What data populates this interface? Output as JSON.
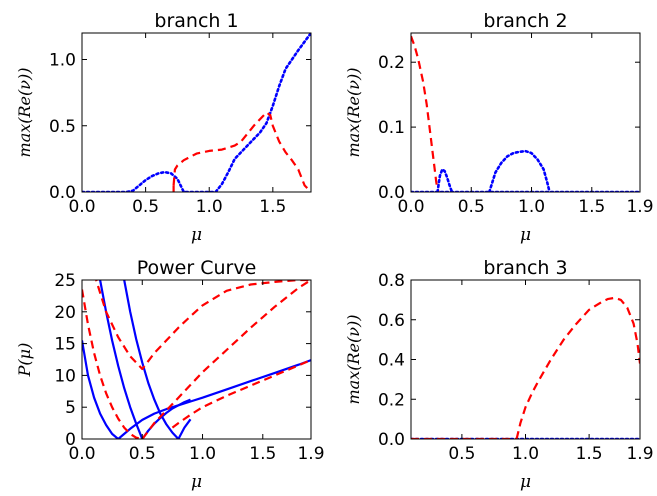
{
  "colors": {
    "solid_series": "#0000ff",
    "dashed_series": "#ff0000"
  },
  "chart_data": [
    {
      "type": "line",
      "title": "branch 1",
      "xlabel": "μ",
      "ylabel": "max(Re(ν))",
      "xlim": [
        0,
        1.8
      ],
      "ylim": [
        0,
        1.2
      ],
      "xticks": [
        0,
        0.5,
        1,
        1.5
      ],
      "xtick_labels": [
        "0.0",
        "0.5",
        "1.0",
        "1.5"
      ],
      "yticks": [
        0,
        0.5,
        1
      ],
      "ytick_labels": [
        "0.0",
        "0.5",
        "1.0"
      ],
      "grid": false,
      "series": [
        {
          "style": "dotted",
          "color": "#0000ff",
          "x": [
            0,
            0.35,
            0.4,
            0.45,
            0.5,
            0.55,
            0.6,
            0.65,
            0.7,
            0.75,
            0.8,
            1.0,
            1.05,
            1.1,
            1.15,
            1.2,
            1.3,
            1.4,
            1.45,
            1.5,
            1.55,
            1.6,
            1.7,
            1.8
          ],
          "y": [
            0,
            0,
            0.01,
            0.05,
            0.09,
            0.12,
            0.14,
            0.15,
            0.14,
            0.1,
            0.0,
            0.0,
            0.0,
            0.06,
            0.15,
            0.25,
            0.35,
            0.45,
            0.52,
            0.65,
            0.8,
            0.93,
            1.07,
            1.2
          ]
        },
        {
          "style": "dashed",
          "color": "#ff0000",
          "x": [
            0.72,
            0.73,
            0.75,
            0.8,
            0.9,
            1.0,
            1.1,
            1.2,
            1.25,
            1.3,
            1.35,
            1.4,
            1.45,
            1.48,
            1.5,
            1.55,
            1.6,
            1.65,
            1.7,
            1.75,
            1.8
          ],
          "y": [
            0.05,
            0.17,
            0.2,
            0.24,
            0.29,
            0.31,
            0.32,
            0.35,
            0.38,
            0.44,
            0.5,
            0.55,
            0.6,
            0.58,
            0.5,
            0.38,
            0.3,
            0.24,
            0.17,
            0.05,
            0.0
          ]
        },
        {
          "style": "dashed",
          "color": "#ff0000",
          "x": [
            0.72,
            0.72
          ],
          "y": [
            0.0,
            0.05
          ]
        }
      ]
    },
    {
      "type": "line",
      "title": "branch 2",
      "xlabel": "μ",
      "ylabel": "max(Re(ν))",
      "xlim": [
        0,
        1.9
      ],
      "ylim": [
        0,
        0.245
      ],
      "xticks": [
        0,
        0.5,
        1,
        1.5,
        1.9
      ],
      "xtick_labels": [
        "0.0",
        "0.5",
        "1.0",
        "1.5",
        "1.9"
      ],
      "yticks": [
        0,
        0.1,
        0.2
      ],
      "ytick_labels": [
        "0.0",
        "0.1",
        "0.2"
      ],
      "grid": false,
      "series": [
        {
          "style": "dashed",
          "color": "#ff0000",
          "x": [
            0,
            0.03,
            0.06,
            0.1,
            0.13,
            0.16,
            0.18,
            0.2,
            0.21,
            0.22,
            0.23
          ],
          "y": [
            0.24,
            0.225,
            0.205,
            0.17,
            0.135,
            0.09,
            0.06,
            0.03,
            0.015,
            0.005,
            0.0
          ]
        },
        {
          "style": "dotted",
          "color": "#0000ff",
          "x": [
            0.22,
            0.24,
            0.26,
            0.28,
            0.3,
            0.32,
            0.34
          ],
          "y": [
            0.0,
            0.025,
            0.035,
            0.032,
            0.022,
            0.01,
            0.0
          ]
        },
        {
          "style": "dotted",
          "color": "#0000ff",
          "x": [
            0.65,
            0.7,
            0.75,
            0.8,
            0.85,
            0.9,
            0.95,
            1.0,
            1.05,
            1.1,
            1.13,
            1.15
          ],
          "y": [
            0.0,
            0.03,
            0.045,
            0.055,
            0.06,
            0.062,
            0.063,
            0.06,
            0.05,
            0.035,
            0.015,
            0.0
          ]
        },
        {
          "style": "dotted",
          "color": "#0000ff",
          "x": [
            0,
            1.9
          ],
          "y": [
            0,
            0
          ]
        }
      ]
    },
    {
      "type": "line",
      "title": "Power Curve",
      "xlabel": "μ",
      "ylabel": "P(μ)",
      "xlim": [
        0,
        1.9
      ],
      "ylim": [
        0,
        25
      ],
      "xticks": [
        0,
        0.5,
        1,
        1.5,
        1.9
      ],
      "xtick_labels": [
        "0.0",
        "0.5",
        "1.0",
        "1.5",
        "1.9"
      ],
      "yticks": [
        0,
        5,
        10,
        15,
        20,
        25
      ],
      "ytick_labels": [
        "0",
        "5",
        "10",
        "15",
        "20",
        "25"
      ],
      "grid": false,
      "series": [
        {
          "style": "solid",
          "color": "#0000ff",
          "x": [
            0,
            0.05,
            0.1,
            0.15,
            0.2,
            0.25,
            0.3
          ],
          "y": [
            15.5,
            10,
            6.5,
            4,
            2.2,
            0.8,
            0
          ]
        },
        {
          "style": "solid",
          "color": "#0000ff",
          "x": [
            0.3,
            0.35,
            0.4,
            0.45,
            0.5,
            0.6,
            0.7,
            0.8,
            0.9,
            1.0,
            1.2,
            1.4,
            1.6,
            1.8,
            1.9
          ],
          "y": [
            0,
            0.8,
            1.6,
            2.3,
            3,
            4,
            4.7,
            5.3,
            5.9,
            6.5,
            7.8,
            9.1,
            10.4,
            11.7,
            12.4
          ]
        },
        {
          "style": "solid",
          "color": "#0000ff",
          "x": [
            0.15,
            0.2,
            0.25,
            0.3,
            0.35,
            0.4,
            0.45,
            0.5
          ],
          "y": [
            25,
            20,
            15.5,
            11.5,
            8,
            5,
            2.4,
            0
          ]
        },
        {
          "style": "solid",
          "color": "#0000ff",
          "x": [
            0.5,
            0.55,
            0.6,
            0.65,
            0.7,
            0.75,
            0.8,
            0.85,
            0.9
          ],
          "y": [
            0,
            1.3,
            2.4,
            3.3,
            4.1,
            4.8,
            5.3,
            5.8,
            6.2
          ]
        },
        {
          "style": "solid",
          "color": "#0000ff",
          "x": [
            0.35,
            0.4,
            0.45,
            0.5,
            0.55,
            0.6,
            0.65,
            0.7,
            0.75,
            0.8
          ],
          "y": [
            25,
            20,
            15.7,
            12,
            8.8,
            6.2,
            4,
            2.3,
            1,
            0
          ]
        },
        {
          "style": "solid",
          "color": "#0000ff",
          "x": [
            0.8,
            0.85,
            0.9
          ],
          "y": [
            0,
            1.8,
            3.1
          ]
        },
        {
          "style": "dashed",
          "color": "#ff0000",
          "x": [
            0,
            0.05,
            0.1,
            0.15,
            0.2,
            0.25,
            0.3,
            0.35,
            0.4,
            0.45,
            0.5
          ],
          "y": [
            23.5,
            18,
            13.5,
            10,
            7.2,
            5,
            3.2,
            1.8,
            0.8,
            0.2,
            0
          ]
        },
        {
          "style": "dashed",
          "color": "#ff0000",
          "x": [
            0.5,
            0.6,
            0.7,
            0.8,
            0.9,
            1.0,
            1.2,
            1.4,
            1.6,
            1.8,
            1.9
          ],
          "y": [
            0,
            2.5,
            4.5,
            6.5,
            8.5,
            10.5,
            14,
            17.5,
            20.8,
            23.8,
            25
          ]
        },
        {
          "style": "dashed",
          "color": "#ff0000",
          "x": [
            0.1,
            0.2,
            0.3,
            0.4,
            0.5,
            0.6,
            0.7,
            0.8,
            0.9,
            1.0,
            1.2,
            1.4,
            1.6,
            1.8,
            1.9
          ],
          "y": [
            26,
            20,
            16,
            13,
            11,
            13.5,
            15.5,
            17.5,
            19.3,
            21,
            23.3,
            24.3,
            24.7,
            25,
            25
          ]
        },
        {
          "style": "dashed",
          "color": "#ff0000",
          "x": [
            0.75,
            0.8,
            0.9,
            1.0,
            1.2,
            1.4,
            1.6,
            1.8,
            1.9
          ],
          "y": [
            1.8,
            2.5,
            3.8,
            5,
            6.8,
            8.4,
            10,
            11.6,
            12.4
          ]
        }
      ]
    },
    {
      "type": "line",
      "title": "branch 3",
      "xlabel": "μ",
      "ylabel": "max(Re(ν))",
      "xlim": [
        0.1,
        1.9
      ],
      "ylim": [
        0,
        0.8
      ],
      "xticks": [
        0.5,
        1,
        1.5,
        1.9
      ],
      "xtick_labels": [
        "0.5",
        "1.0",
        "1.5",
        "1.9"
      ],
      "yticks": [
        0,
        0.2,
        0.4,
        0.6,
        0.8
      ],
      "ytick_labels": [
        "0.0",
        "0.2",
        "0.4",
        "0.6",
        "0.8"
      ],
      "grid": false,
      "series": [
        {
          "style": "dotted",
          "color": "#0000ff",
          "x": [
            0.1,
            1.9
          ],
          "y": [
            0,
            0
          ]
        },
        {
          "style": "dashed",
          "color": "#ff0000",
          "x": [
            0.1,
            0.93
          ],
          "y": [
            0,
            0
          ]
        },
        {
          "style": "dashed",
          "color": "#ff0000",
          "x": [
            0.93,
            0.96,
            1.0,
            1.05,
            1.1,
            1.2,
            1.3,
            1.4,
            1.5,
            1.6,
            1.65,
            1.7,
            1.75,
            1.8,
            1.85,
            1.88,
            1.9
          ],
          "y": [
            0,
            0.08,
            0.16,
            0.23,
            0.29,
            0.4,
            0.5,
            0.58,
            0.65,
            0.69,
            0.705,
            0.71,
            0.7,
            0.66,
            0.58,
            0.48,
            0.38
          ]
        }
      ]
    }
  ]
}
